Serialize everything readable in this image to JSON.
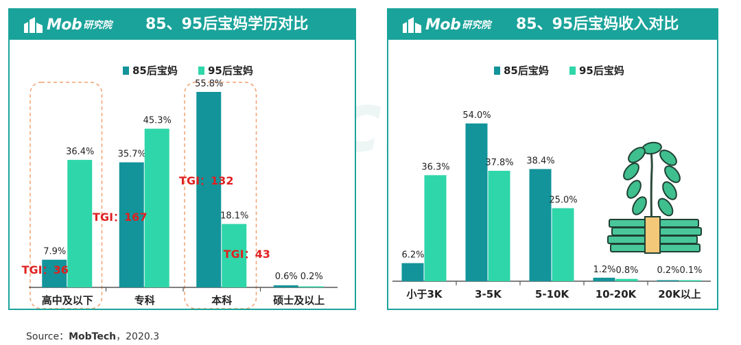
{
  "brand": {
    "logo_text": "Mob",
    "logo_sub": "研究院",
    "watermark": "MobTech"
  },
  "colors": {
    "header": "#1aa39a",
    "series_85": "#13949b",
    "series_95": "#2fd6a9",
    "tgi": "#e02020",
    "highlight": "#f0a070"
  },
  "source": {
    "prefix": "Source：",
    "name": "MobTech",
    "date": "，2020.3"
  },
  "chart_data": [
    {
      "type": "bar",
      "title": "85、95后宝妈学历对比",
      "categories": [
        "高中及以下",
        "专科",
        "本科",
        "硕士及以上"
      ],
      "series": [
        {
          "name": "85后宝妈",
          "values": [
            7.9,
            35.7,
            55.8,
            0.6
          ],
          "labels": [
            "7.9%",
            "35.7%",
            "55.8%",
            "0.6%"
          ]
        },
        {
          "name": "95后宝妈",
          "values": [
            36.4,
            45.3,
            18.1,
            0.2
          ],
          "labels": [
            "36.4%",
            "45.3%",
            "18.1%",
            "0.2%"
          ]
        }
      ],
      "ylim": [
        0,
        60
      ],
      "legend": "top-center",
      "annotations": [
        {
          "text": "TGI：36",
          "category": "高中及以下",
          "series": "85后宝妈"
        },
        {
          "text": "TGI：167",
          "category": "高中及以下",
          "series": "95后宝妈"
        },
        {
          "text": "TGI：132",
          "category": "本科",
          "series": "85后宝妈"
        },
        {
          "text": "TGI：43",
          "category": "本科",
          "series": "95后宝妈"
        }
      ],
      "highlighted_categories": [
        "高中及以下",
        "本科"
      ]
    },
    {
      "type": "bar",
      "title": "85、95后宝妈收入对比",
      "categories": [
        "小于3K",
        "3-5K",
        "5-10K",
        "10-20K",
        "20K以上"
      ],
      "series": [
        {
          "name": "85后宝妈",
          "values": [
            6.2,
            54.0,
            38.4,
            1.2,
            0.2
          ],
          "labels": [
            "6.2%",
            "54.0%",
            "38.4%",
            "1.2%",
            "0.2%"
          ]
        },
        {
          "name": "95后宝妈",
          "values": [
            36.3,
            37.8,
            25.0,
            0.8,
            0.1
          ],
          "labels": [
            "36.3%",
            "37.8%",
            "25.0%",
            "0.8%",
            "0.1%"
          ]
        }
      ],
      "ylim": [
        0,
        60
      ],
      "legend": "top-center",
      "decoration": "money-plant-icon"
    }
  ]
}
